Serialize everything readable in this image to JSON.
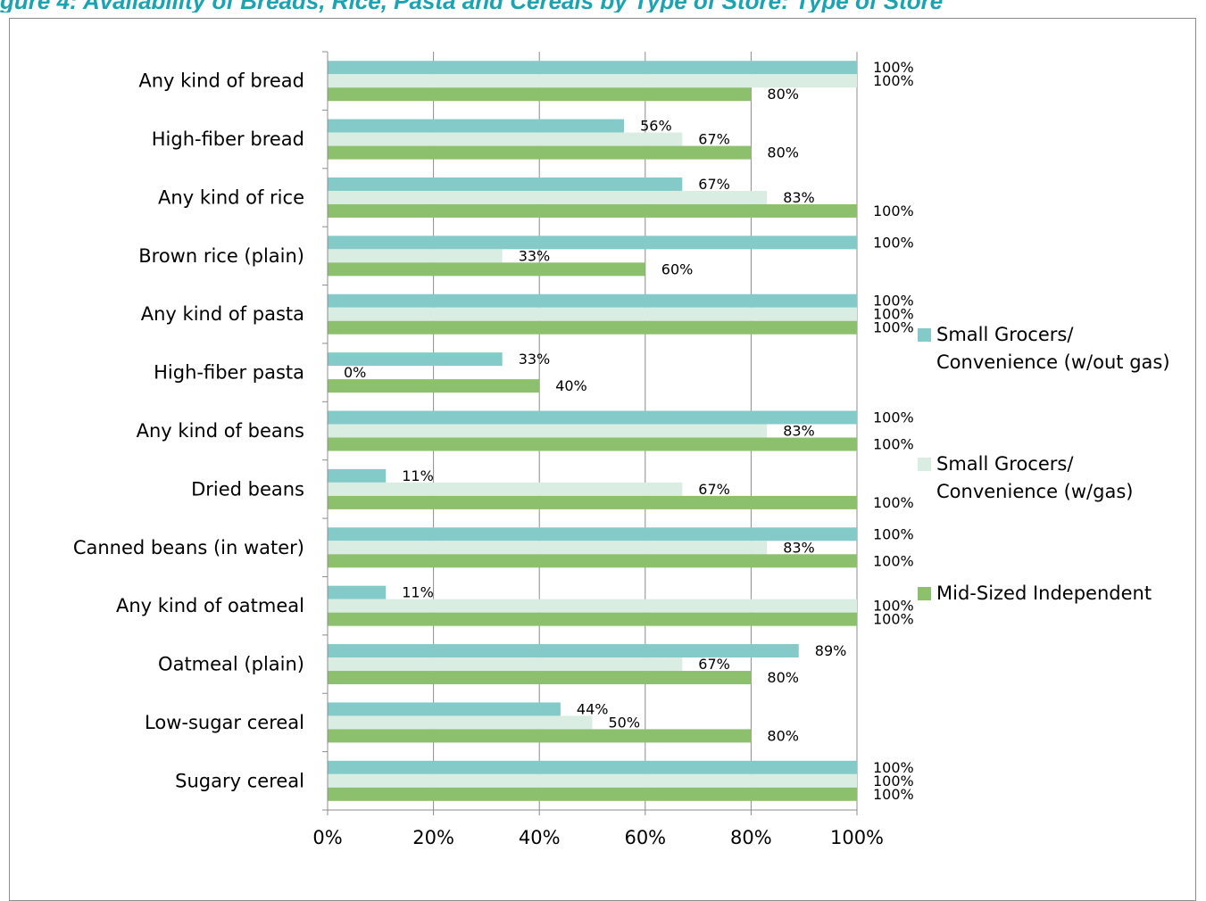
{
  "page": {
    "title": "gure 4: Availability of Breads, Rice, Pasta and Cereals by Type of Store: Type of Store"
  },
  "chart_data": {
    "type": "bar",
    "orientation": "horizontal",
    "title": "",
    "xlabel": "",
    "ylabel": "",
    "xlim": [
      0,
      100
    ],
    "x_ticks": [
      "0%",
      "20%",
      "40%",
      "60%",
      "80%",
      "100%"
    ],
    "grid": "vertical",
    "legend_position": "right",
    "categories": [
      "Any kind of bread",
      "High-fiber bread",
      "Any kind of rice",
      "Brown rice (plain)",
      "Any kind of pasta",
      "High-fiber pasta",
      "Any kind of beans",
      "Dried beans",
      "Canned beans (in water)",
      "Any kind of oatmeal",
      "Oatmeal (plain)",
      "Low-sugar cereal",
      "Sugary cereal"
    ],
    "series": [
      {
        "name": "Small Grocers/ Convenience (w/out gas)",
        "legend_lines": [
          "Small Grocers/",
          "Convenience (w/out gas)"
        ],
        "color": "#84cac8",
        "values": [
          100,
          56,
          67,
          100,
          100,
          33,
          100,
          11,
          100,
          11,
          89,
          44,
          100
        ],
        "labels": [
          "100%",
          "56%",
          "67%",
          "100%",
          "100%",
          "33%",
          "100%",
          "11%",
          "100%",
          "11%",
          "89%",
          "44%",
          "100%"
        ]
      },
      {
        "name": "Small Grocers/ Convenience (w/gas)",
        "legend_lines": [
          "Small Grocers/",
          "Convenience (w/gas)"
        ],
        "color": "#d9ede3",
        "values": [
          100,
          67,
          83,
          33,
          100,
          0,
          83,
          67,
          83,
          100,
          67,
          50,
          100
        ],
        "labels": [
          "100%",
          "67%",
          "83%",
          "33%",
          "100%",
          "0%",
          "83%",
          "67%",
          "83%",
          "100%",
          "67%",
          "50%",
          "100%"
        ]
      },
      {
        "name": "Mid-Sized Independent",
        "legend_lines": [
          "Mid-Sized Independent"
        ],
        "color": "#8cc06d",
        "values": [
          80,
          80,
          100,
          60,
          100,
          40,
          100,
          100,
          100,
          100,
          80,
          80,
          100
        ],
        "labels": [
          "80%",
          "80%",
          "100%",
          "60%",
          "100%",
          "40%",
          "100%",
          "100%",
          "100%",
          "100%",
          "80%",
          "80%",
          "100%"
        ]
      }
    ]
  }
}
